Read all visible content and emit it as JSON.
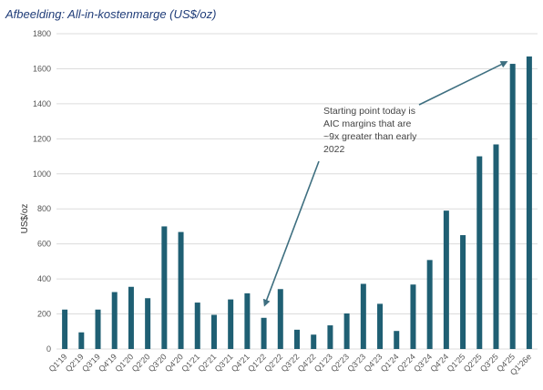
{
  "title": "Afbeelding: All-in-kostenmarge (US$/oz)",
  "chart_data": {
    "type": "bar",
    "ylabel": "US$/oz",
    "xlabel": "",
    "ylim": [
      0,
      1800
    ],
    "yticks": [
      0,
      200,
      400,
      600,
      800,
      1000,
      1200,
      1400,
      1600,
      1800
    ],
    "grid": "horizontal",
    "bar_color": "#1f5f73",
    "categories": [
      "Q1'19",
      "Q2'19",
      "Q3'19",
      "Q4'19",
      "Q1'20",
      "Q2'20",
      "Q3'20",
      "Q4'20",
      "Q1'21",
      "Q2'21",
      "Q3'21",
      "Q4'21",
      "Q1'22",
      "Q2'22",
      "Q3'22",
      "Q4'22",
      "Q1'23",
      "Q2'23",
      "Q3'23",
      "Q4'23",
      "Q1'24",
      "Q2'24",
      "Q3'24",
      "Q4'24",
      "Q1'25",
      "Q2'25",
      "Q3'25",
      "Q4'25",
      "Q1'26e"
    ],
    "values": [
      225,
      95,
      225,
      325,
      355,
      290,
      700,
      668,
      265,
      195,
      283,
      318,
      178,
      342,
      110,
      82,
      135,
      203,
      372,
      258,
      103,
      368,
      508,
      790,
      650,
      1100,
      1168,
      1628,
      1670
    ],
    "annotation": {
      "lines": [
        "Starting point today is",
        "AIC margins that are",
        "~9x greater than early",
        "2022"
      ],
      "arrow_targets": [
        "Q1'22",
        "Q4'25"
      ]
    }
  }
}
